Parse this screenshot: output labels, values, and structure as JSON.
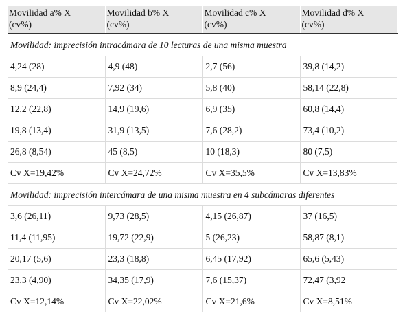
{
  "table": {
    "headers": [
      {
        "line1": "Movilidad a% X",
        "line2": "(cv%)"
      },
      {
        "line1": "Movilidad b% X",
        "line2": "(cv%)"
      },
      {
        "line1": "Movilidad c% X",
        "line2": "(cv%)"
      },
      {
        "line1": "Movilidad d% X",
        "line2": "(cv%)"
      }
    ],
    "sections": [
      {
        "title": "Movilidad: imprecisión intracámara de 10 lecturas de una misma muestra",
        "rows": [
          [
            "4,24 (28)",
            "4,9 (48)",
            "2,7 (56)",
            "39,8 (14,2)"
          ],
          [
            "8,9 (24,4)",
            "7,92 (34)",
            "5,8 (40)",
            "58,14 (22,8)"
          ],
          [
            "12,2 (22,8)",
            "14,9 (19,6)",
            "6,9 (35)",
            "60,8 (14,4)"
          ],
          [
            "19,8 (13,4)",
            "31,9 (13,5)",
            "7,6 (28,2)",
            "73,4 (10,2)"
          ],
          [
            "26,8 (8,54)",
            "45 (8,5)",
            "10 (18,3)",
            "80 (7,5)"
          ],
          [
            "Cv X=19,42%",
            "Cv X=24,72%",
            "Cv X=35,5%",
            "Cv X=13,83%"
          ]
        ]
      },
      {
        "title": "Movilidad: imprecisión intercámara de una misma muestra en 4 subcámaras diferentes",
        "rows": [
          [
            "3,6 (26,11)",
            "9,73 (28,5)",
            "4,15 (26,87)",
            "37 (16,5)"
          ],
          [
            "11,4 (11,95)",
            "19,72 (22,9)",
            "5 (26,23)",
            "58,87 (8,1)"
          ],
          [
            "20,17 (5,6)",
            "23,3 (18,8)",
            "6,45 (17,92)",
            "65,6 (5,43)"
          ],
          [
            "23,3 (4,90)",
            "34,35 (17,9)",
            "7,6 (15,37)",
            "72,47 (3,92"
          ],
          [
            "Cv X=12,14%",
            "Cv X=22,02%",
            "Cv X=21,6%",
            "Cv X=8,51%"
          ]
        ]
      }
    ]
  }
}
